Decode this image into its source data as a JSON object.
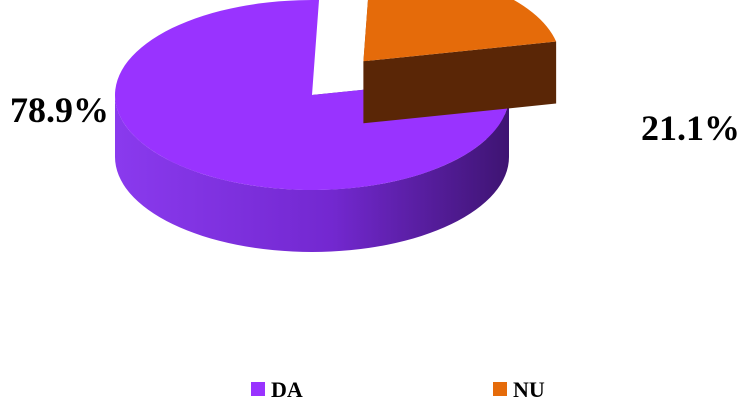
{
  "chart_data": {
    "type": "pie",
    "title": "",
    "categories": [
      "DA",
      "NU"
    ],
    "values": [
      78.9,
      21.1
    ],
    "unit": "%",
    "data_labels": [
      "78.9%",
      "21.1%"
    ],
    "colors": [
      "#9933FF",
      "#E56B0A"
    ],
    "side_colors": [
      "#6A22B8",
      "#6B2E08"
    ],
    "style": "3d-exploded",
    "exploded_category": "NU",
    "legend": {
      "position": "bottom",
      "entries": [
        "DA",
        "NU"
      ]
    }
  }
}
